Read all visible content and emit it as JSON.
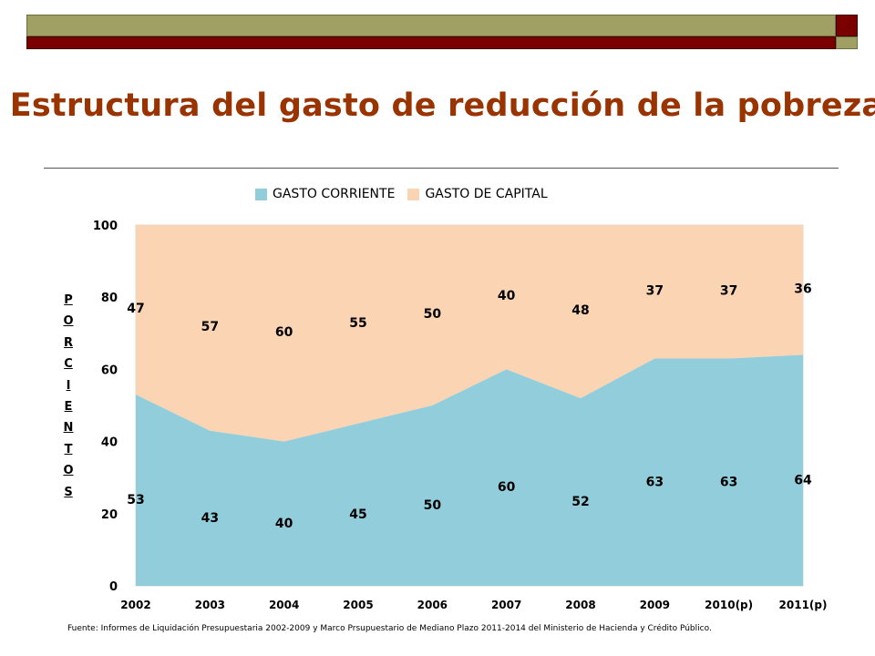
{
  "title": "Estructura del gasto de reducción de la pobreza",
  "colors": {
    "title": "#993300",
    "corriente": "#92cddc",
    "capital": "#fbd4b4",
    "bar_olive": "#a1a064",
    "bar_maroon": "#7a0000"
  },
  "chart_data": {
    "type": "area",
    "stacked": true,
    "percent": true,
    "categories": [
      "2002",
      "2003",
      "2004",
      "2005",
      "2006",
      "2007",
      "2008",
      "2009",
      "2010(p)",
      "2011(p)"
    ],
    "series": [
      {
        "name": "GASTO CORRIENTE",
        "values": [
          53,
          43,
          40,
          45,
          50,
          60,
          52,
          63,
          63,
          64
        ]
      },
      {
        "name": "GASTO DE CAPITAL",
        "values": [
          47,
          57,
          60,
          55,
          50,
          40,
          48,
          37,
          37,
          36
        ]
      }
    ],
    "ylabel": "PORCIENTOS",
    "ylim": [
      0,
      100
    ],
    "yticks": [
      "0",
      "20",
      "40",
      "60",
      "80",
      "100"
    ],
    "legend_position": "top"
  },
  "source": "Fuente: Informes de Liquidación Presupuestaria 2002-2009 y Marco Prsupuestario de Mediano Plazo 2011-2014 del Ministerio de Hacienda y Crédito Público."
}
